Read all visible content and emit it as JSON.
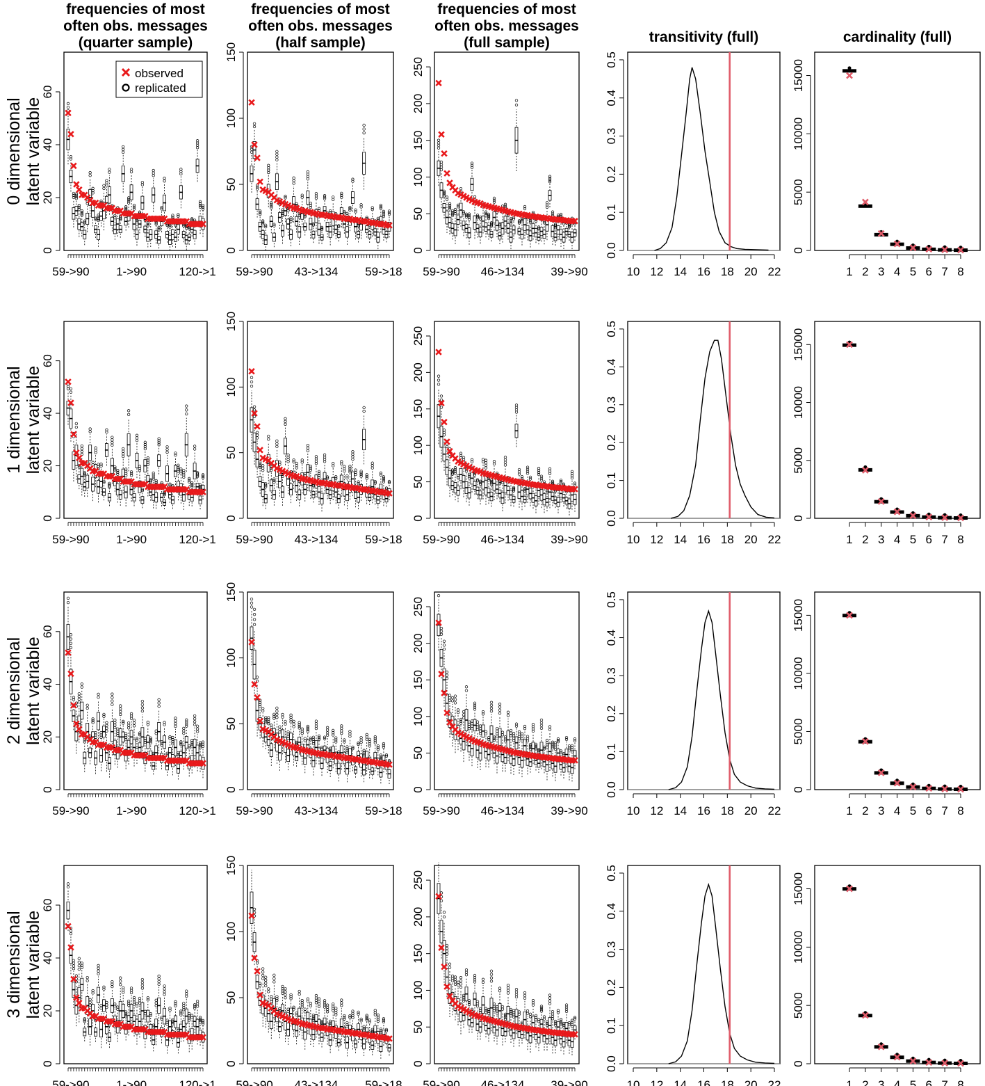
{
  "colors": {
    "observed": "#e8191b",
    "replicated": "#000000",
    "cardinality_observed": "#e05c6a",
    "vline": "#e05c6a",
    "density": "#000000"
  },
  "legend": {
    "observed": "observed",
    "replicated": "replicated",
    "placement": "top-right of first panel"
  },
  "column_titles": [
    [
      "frequencies of most",
      "often obs. messages",
      "(quarter sample)"
    ],
    [
      "frequencies of most",
      "often obs. messages",
      "(half sample)"
    ],
    [
      "frequencies of most",
      "often obs. messages",
      "(full sample)"
    ],
    [
      "transitivity (full)"
    ],
    [
      "cardinality (full)"
    ]
  ],
  "row_labels": [
    [
      "0 dimensional",
      "latent variable"
    ],
    [
      "1 dimensional",
      "latent variable"
    ],
    [
      "2 dimensional",
      "latent variable"
    ],
    [
      "3 dimensional",
      "latent variable"
    ]
  ],
  "chart_data": [
    {
      "type": "boxplot",
      "panel": "frequencies of most often obs. messages (quarter sample)",
      "n_messages": 50,
      "ylim": [
        0,
        75
      ],
      "yticks": [
        0,
        20,
        40,
        60
      ],
      "xtick_labels": [
        "59->90",
        "1->90",
        "120->1"
      ],
      "observed": [
        52,
        44,
        32,
        25,
        23,
        21,
        21,
        20,
        19,
        18,
        18,
        17,
        17,
        17,
        16,
        16,
        16,
        15,
        15,
        15,
        14,
        14,
        14,
        14,
        13,
        13,
        13,
        13,
        13,
        12,
        12,
        12,
        12,
        12,
        12,
        12,
        11,
        11,
        11,
        11,
        11,
        11,
        11,
        11,
        10,
        10,
        10,
        10,
        10,
        10
      ],
      "replicated_medians": {
        "0 dimensional": [
          42,
          28,
          14,
          15,
          10,
          9,
          6,
          12,
          20,
          15,
          8,
          6,
          13,
          15,
          18,
          21,
          11,
          8,
          10,
          8,
          29,
          11,
          13,
          22,
          10,
          6,
          10,
          18,
          8,
          5,
          6,
          21,
          6,
          4,
          11,
          18,
          6,
          4,
          6,
          5,
          8,
          22,
          6,
          4,
          5,
          8,
          6,
          32,
          11,
          10
        ],
        "1 dimensional": [
          42,
          38,
          22,
          24,
          15,
          16,
          12,
          14,
          25,
          13,
          18,
          12,
          14,
          10,
          26,
          8,
          20,
          14,
          11,
          9,
          16,
          10,
          28,
          11,
          8,
          22,
          12,
          7,
          20,
          14,
          10,
          9,
          8,
          22,
          8,
          6,
          17,
          9,
          7,
          18,
          12,
          11,
          9,
          28,
          9,
          8,
          18,
          12,
          7,
          11
        ],
        "2 dimensional": [
          58,
          41,
          28,
          22,
          25,
          30,
          12,
          22,
          14,
          20,
          12,
          26,
          13,
          22,
          14,
          10,
          22,
          16,
          14,
          20,
          20,
          13,
          16,
          20,
          16,
          14,
          16,
          20,
          12,
          18,
          13,
          9,
          14,
          22,
          12,
          18,
          9,
          14,
          11,
          16,
          8,
          13,
          14,
          18,
          10,
          11,
          16,
          14,
          11,
          10
        ],
        "3 dimensional": [
          58,
          41,
          28,
          22,
          25,
          30,
          12,
          22,
          14,
          20,
          12,
          26,
          13,
          22,
          14,
          10,
          22,
          16,
          14,
          20,
          20,
          13,
          16,
          20,
          16,
          14,
          16,
          20,
          12,
          18,
          13,
          9,
          14,
          22,
          12,
          18,
          9,
          14,
          11,
          16,
          8,
          13,
          14,
          18,
          10,
          11,
          16,
          14,
          11,
          10
        ]
      }
    },
    {
      "type": "boxplot",
      "panel": "frequencies of most often obs. messages (half sample)",
      "n_messages": 50,
      "ylim": [
        0,
        150
      ],
      "yticks": [
        0,
        50,
        100,
        150
      ],
      "xtick_labels": [
        "59->90",
        "43->134",
        "59->18"
      ],
      "observed": [
        112,
        80,
        70,
        52,
        46,
        45,
        44,
        42,
        40,
        38,
        37,
        36,
        35,
        34,
        33,
        32,
        32,
        31,
        30,
        30,
        29,
        29,
        28,
        28,
        27,
        27,
        27,
        26,
        26,
        26,
        25,
        25,
        25,
        24,
        24,
        24,
        23,
        23,
        23,
        22,
        22,
        22,
        21,
        21,
        21,
        20,
        20,
        20,
        19,
        19
      ],
      "replicated_medians": {
        "0 dimensional": [
          58,
          76,
          35,
          18,
          12,
          8,
          45,
          22,
          10,
          52,
          25,
          15,
          30,
          20,
          12,
          35,
          22,
          14,
          28,
          18,
          40,
          20,
          12,
          26,
          16,
          10,
          30,
          18,
          14,
          24,
          16,
          12,
          28,
          20,
          14,
          22,
          40,
          18,
          12,
          20,
          66,
          16,
          12,
          20,
          14,
          10,
          22,
          16,
          12,
          18
        ],
        "1 dimensional": [
          75,
          58,
          45,
          28,
          22,
          15,
          42,
          25,
          18,
          38,
          28,
          20,
          55,
          30,
          22,
          32,
          25,
          18,
          30,
          22,
          35,
          25,
          18,
          28,
          20,
          15,
          30,
          22,
          18,
          26,
          20,
          15,
          28,
          22,
          18,
          24,
          30,
          20,
          16,
          22,
          60,
          20,
          16,
          24,
          18,
          14,
          22,
          18,
          15,
          20
        ],
        "2 dimensional": [
          115,
          95,
          60,
          50,
          45,
          40,
          38,
          30,
          42,
          36,
          28,
          40,
          34,
          26,
          38,
          32,
          25,
          36,
          30,
          24,
          34,
          28,
          22,
          32,
          28,
          20,
          30,
          26,
          18,
          28,
          24,
          16,
          28,
          24,
          16,
          26,
          22,
          15,
          26,
          22,
          15,
          24,
          20,
          14,
          24,
          20,
          13,
          22,
          18,
          12
        ],
        "3 dimensional": [
          118,
          92,
          62,
          48,
          45,
          42,
          38,
          32,
          42,
          36,
          28,
          40,
          32,
          26,
          38,
          30,
          25,
          36,
          30,
          24,
          34,
          28,
          22,
          32,
          28,
          20,
          30,
          26,
          18,
          28,
          24,
          16,
          28,
          24,
          16,
          26,
          22,
          15,
          26,
          22,
          15,
          24,
          20,
          14,
          24,
          20,
          13,
          22,
          18,
          12
        ]
      }
    },
    {
      "type": "boxplot",
      "panel": "frequencies of most often obs. messages (full sample)",
      "n_messages": 50,
      "ylim": [
        0,
        270
      ],
      "yticks": [
        0,
        50,
        100,
        150,
        200,
        250
      ],
      "xtick_labels": [
        "59->90",
        "46->134",
        "39->90"
      ],
      "observed": [
        228,
        158,
        132,
        105,
        92,
        86,
        82,
        78,
        76,
        74,
        72,
        70,
        68,
        66,
        65,
        64,
        62,
        61,
        60,
        59,
        58,
        57,
        56,
        55,
        54,
        53,
        52,
        51,
        50,
        50,
        49,
        48,
        48,
        47,
        46,
        46,
        45,
        45,
        44,
        44,
        43,
        43,
        42,
        42,
        42,
        41,
        41,
        40,
        40,
        40
      ],
      "replicated_medians": {
        "0 dimensional": [
          112,
          82,
          58,
          45,
          38,
          30,
          28,
          42,
          55,
          34,
          30,
          24,
          90,
          38,
          30,
          25,
          40,
          32,
          28,
          22,
          45,
          34,
          20,
          30,
          40,
          30,
          18,
          28,
          150,
          26,
          22,
          35,
          28,
          20,
          30,
          24,
          18,
          26,
          22,
          35,
          75,
          26,
          18,
          28,
          22,
          18,
          26,
          22,
          18,
          24
        ],
        "1 dimensional": [
          140,
          112,
          88,
          70,
          55,
          45,
          42,
          38,
          60,
          50,
          42,
          35,
          55,
          45,
          38,
          32,
          50,
          42,
          35,
          30,
          48,
          40,
          34,
          28,
          45,
          38,
          32,
          26,
          120,
          36,
          30,
          26,
          40,
          34,
          28,
          24,
          38,
          32,
          26,
          22,
          36,
          30,
          25,
          22,
          34,
          28,
          24,
          20,
          32,
          26
        ],
        "2 dimensional": [
          225,
          180,
          150,
          118,
          95,
          88,
          82,
          78,
          70,
          66,
          95,
          60,
          56,
          88,
          54,
          50,
          80,
          52,
          48,
          76,
          50,
          46,
          72,
          48,
          44,
          68,
          46,
          42,
          64,
          44,
          40,
          60,
          42,
          38,
          56,
          40,
          36,
          54,
          38,
          34,
          52,
          36,
          32,
          50,
          34,
          30,
          48,
          32,
          30,
          46
        ],
        "3 dimensional": [
          225,
          180,
          150,
          118,
          95,
          88,
          82,
          78,
          70,
          66,
          95,
          60,
          56,
          88,
          54,
          50,
          80,
          52,
          48,
          76,
          50,
          46,
          72,
          48,
          44,
          68,
          46,
          42,
          64,
          44,
          40,
          60,
          42,
          38,
          56,
          40,
          36,
          54,
          38,
          34,
          52,
          36,
          32,
          50,
          34,
          30,
          48,
          32,
          30,
          46
        ]
      }
    },
    {
      "type": "density",
      "panel": "transitivity (full)",
      "xlim": [
        10,
        22
      ],
      "ylim": [
        0,
        0.5
      ],
      "xticks": [
        10,
        12,
        14,
        16,
        18,
        20,
        22
      ],
      "yticks": [
        0.0,
        0.1,
        0.2,
        0.3,
        0.4,
        0.5
      ],
      "observed_value": 18.2,
      "replicated_density": {
        "0 dimensional": {
          "x": [
            11.8,
            12.3,
            12.8,
            13.3,
            13.7,
            14.1,
            14.5,
            14.8,
            15.0,
            15.3,
            15.7,
            16.1,
            16.5,
            16.9,
            17.3,
            17.8,
            18.3,
            18.8,
            19.5,
            20.5,
            21.5
          ],
          "y": [
            0,
            0.005,
            0.02,
            0.06,
            0.14,
            0.25,
            0.36,
            0.45,
            0.48,
            0.45,
            0.36,
            0.26,
            0.18,
            0.1,
            0.05,
            0.02,
            0.01,
            0.005,
            0.003,
            0.002,
            0.001
          ]
        },
        "1 dimensional": {
          "x": [
            13.2,
            13.8,
            14.3,
            14.8,
            15.3,
            15.7,
            16.1,
            16.5,
            16.9,
            17.2,
            17.5,
            17.9,
            18.3,
            18.7,
            19.1,
            19.5,
            20.0,
            20.6,
            21.3,
            22.0
          ],
          "y": [
            0,
            0.005,
            0.02,
            0.06,
            0.14,
            0.26,
            0.37,
            0.44,
            0.47,
            0.47,
            0.42,
            0.32,
            0.22,
            0.14,
            0.09,
            0.06,
            0.03,
            0.01,
            0.003,
            0.001
          ]
        },
        "2 dimensional": {
          "x": [
            13.0,
            13.6,
            14.1,
            14.6,
            15.0,
            15.4,
            15.8,
            16.1,
            16.4,
            16.7,
            17.0,
            17.4,
            17.8,
            18.2,
            18.6,
            19.1,
            19.7,
            20.4,
            21.2,
            22.0
          ],
          "y": [
            0,
            0.005,
            0.02,
            0.06,
            0.14,
            0.26,
            0.37,
            0.44,
            0.47,
            0.44,
            0.36,
            0.25,
            0.15,
            0.08,
            0.04,
            0.02,
            0.01,
            0.004,
            0.002,
            0.001
          ]
        },
        "3 dimensional": {
          "x": [
            13.0,
            13.6,
            14.1,
            14.6,
            15.0,
            15.4,
            15.8,
            16.1,
            16.4,
            16.7,
            17.0,
            17.4,
            17.8,
            18.2,
            18.6,
            19.1,
            19.7,
            20.4,
            21.2,
            22.0
          ],
          "y": [
            0,
            0.005,
            0.02,
            0.06,
            0.14,
            0.26,
            0.37,
            0.44,
            0.47,
            0.44,
            0.36,
            0.25,
            0.15,
            0.08,
            0.04,
            0.02,
            0.01,
            0.004,
            0.002,
            0.001
          ]
        }
      }
    },
    {
      "type": "boxplot",
      "panel": "cardinality (full)",
      "categories": [
        1,
        2,
        3,
        4,
        5,
        6,
        7,
        8
      ],
      "ylim": [
        0,
        17000
      ],
      "yticks": [
        0,
        5000,
        10000,
        15000
      ],
      "observed": [
        15000,
        4150,
        1450,
        560,
        230,
        110,
        55,
        30
      ],
      "replicated_medians": {
        "0 dimensional": [
          15400,
          3800,
          1350,
          530,
          210,
          100,
          50,
          25
        ],
        "1 dimensional": [
          14950,
          4180,
          1430,
          540,
          220,
          105,
          52,
          28
        ],
        "2 dimensional": [
          14980,
          4120,
          1440,
          550,
          225,
          108,
          53,
          29
        ],
        "3 dimensional": [
          14990,
          4130,
          1445,
          552,
          226,
          109,
          54,
          29
        ]
      }
    }
  ]
}
